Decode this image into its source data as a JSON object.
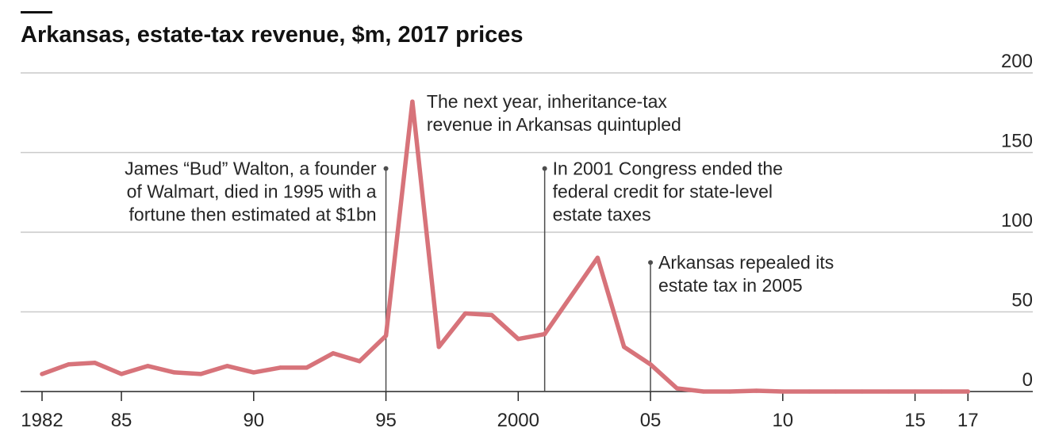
{
  "chart_data": {
    "type": "line",
    "title": "Arkansas, estate-tax revenue, $m, 2017 prices",
    "xlabel": "",
    "ylabel": "",
    "ylim": [
      0,
      200
    ],
    "yticks": [
      "200",
      "150",
      "100",
      "50",
      "0"
    ],
    "yaxis_side": "right",
    "grid": "horizontal",
    "line_color": "#d7737a",
    "grid_color": "#c9c9c9",
    "xticks": [
      {
        "year": 1982,
        "label": "1982"
      },
      {
        "year": 1985,
        "label": "85"
      },
      {
        "year": 1990,
        "label": "90"
      },
      {
        "year": 1995,
        "label": "95"
      },
      {
        "year": 2000,
        "label": "2000"
      },
      {
        "year": 2005,
        "label": "05"
      },
      {
        "year": 2010,
        "label": "10"
      },
      {
        "year": 2015,
        "label": "15"
      },
      {
        "year": 2017,
        "label": "17"
      }
    ],
    "series": [
      {
        "values": [
          [
            1982,
            11
          ],
          [
            1983,
            17
          ],
          [
            1984,
            18
          ],
          [
            1985,
            11
          ],
          [
            1986,
            16
          ],
          [
            1987,
            12
          ],
          [
            1988,
            11
          ],
          [
            1989,
            16
          ],
          [
            1990,
            12
          ],
          [
            1991,
            15
          ],
          [
            1992,
            15
          ],
          [
            1993,
            24
          ],
          [
            1994,
            19
          ],
          [
            1995,
            35
          ],
          [
            1996,
            182
          ],
          [
            1997,
            28
          ],
          [
            1998,
            49
          ],
          [
            1999,
            48
          ],
          [
            2000,
            33
          ],
          [
            2001,
            36
          ],
          [
            2002,
            60
          ],
          [
            2003,
            84
          ],
          [
            2004,
            28
          ],
          [
            2005,
            17
          ],
          [
            2006,
            2
          ],
          [
            2007,
            0
          ],
          [
            2008,
            0
          ],
          [
            2009,
            0.5
          ],
          [
            2010,
            0
          ],
          [
            2011,
            0
          ],
          [
            2012,
            0
          ],
          [
            2013,
            0
          ],
          [
            2014,
            0
          ],
          [
            2015,
            0
          ],
          [
            2016,
            0
          ],
          [
            2017,
            0
          ]
        ]
      }
    ],
    "annotations": [
      {
        "year": 1995,
        "y_top": 140,
        "align": "end",
        "lines": [
          "James “Bud” Walton, a founder",
          "of Walmart, died in 1995 with a",
          "fortune then estimated at $1bn"
        ]
      },
      {
        "year": 1996,
        "align": "start",
        "lines": [
          "The next year, inheritance-tax",
          "revenue in Arkansas quintupled"
        ]
      },
      {
        "year": 2001,
        "y_top": 140,
        "align": "start",
        "lines": [
          "In 2001 Congress ended the",
          "federal credit for state-level",
          "estate taxes"
        ]
      },
      {
        "year": 2005,
        "y_top": 81,
        "align": "start",
        "lines": [
          "Arkansas repealed its",
          "estate tax in 2005"
        ]
      }
    ]
  }
}
